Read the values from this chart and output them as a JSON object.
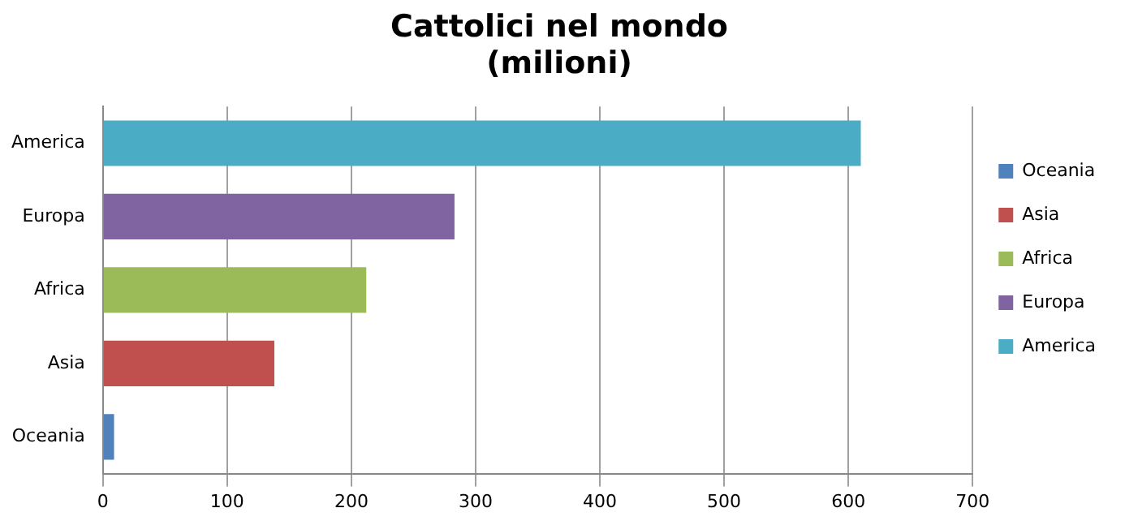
{
  "chart_data": {
    "type": "bar",
    "orientation": "horizontal",
    "title": "Cattolici nel mondo\n(milioni)",
    "categories": [
      "America",
      "Europa",
      "Africa",
      "Asia",
      "Oceania"
    ],
    "series": [
      {
        "name": "Oceania",
        "color": "#4f81bd",
        "values": [
          null,
          null,
          null,
          null,
          9
        ]
      },
      {
        "name": "Asia",
        "color": "#c0504d",
        "values": [
          null,
          null,
          null,
          138,
          null
        ]
      },
      {
        "name": "Africa",
        "color": "#9bbb59",
        "values": [
          null,
          null,
          212,
          null,
          null
        ]
      },
      {
        "name": "Europa",
        "color": "#8064a2",
        "values": [
          null,
          283,
          null,
          null,
          null
        ]
      },
      {
        "name": "America",
        "color": "#4bacc6",
        "values": [
          610,
          null,
          null,
          null,
          null
        ]
      }
    ],
    "xlim": [
      0,
      700
    ],
    "xticks": [
      0,
      100,
      200,
      300,
      400,
      500,
      600,
      700
    ],
    "grid": "x",
    "legend": "right"
  }
}
